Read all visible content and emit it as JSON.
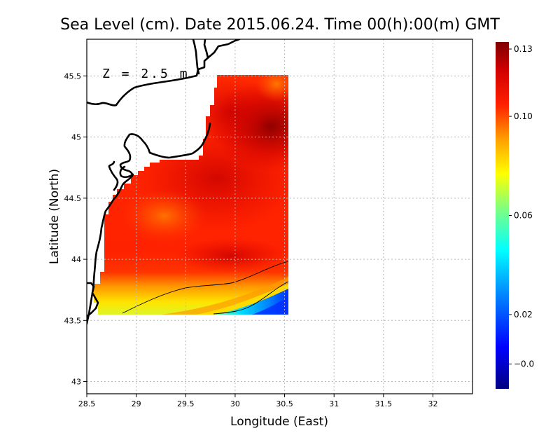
{
  "title": "Sea Level (cm). Date 2015.06.24. Time 00(h):00(m) GMT",
  "annotation": "Z = 2.5 m",
  "x_axis": {
    "label": "Longitude (East)",
    "ticks": [
      {
        "value": 28.5,
        "label": "28.5"
      },
      {
        "value": 29,
        "label": "29"
      },
      {
        "value": 29.5,
        "label": "29.5"
      },
      {
        "value": 30,
        "label": "30"
      },
      {
        "value": 30.5,
        "label": "30.5"
      },
      {
        "value": 31,
        "label": "31"
      },
      {
        "value": 31.5,
        "label": "31.5"
      },
      {
        "value": 32,
        "label": "32"
      }
    ],
    "range": [
      28.5,
      32.4
    ]
  },
  "y_axis": {
    "label": "Latitude (North)",
    "ticks": [
      {
        "value": 43,
        "label": "43"
      },
      {
        "value": 43.5,
        "label": "43.5"
      },
      {
        "value": 44,
        "label": "44"
      },
      {
        "value": 44.5,
        "label": "44.5"
      },
      {
        "value": 45,
        "label": "45"
      },
      {
        "value": 45.5,
        "label": "45.5"
      }
    ],
    "range": [
      42.9,
      45.8
    ]
  },
  "colorbar": {
    "ticks": [
      {
        "value": 0.13,
        "label": "0.13"
      },
      {
        "value": 0.1,
        "label": "0.10"
      },
      {
        "value": 0.06,
        "label": "0.06"
      },
      {
        "value": 0.02,
        "label": "0.02"
      },
      {
        "value": -0.0,
        "label": "−0.0"
      }
    ],
    "range": [
      -0.01,
      0.13
    ],
    "colormap": [
      "#00007f",
      "#0000ff",
      "#00a0ff",
      "#00ffff",
      "#7fff7f",
      "#ffff00",
      "#ff9f00",
      "#ff2000",
      "#d00000",
      "#7f0000"
    ]
  },
  "grid": true,
  "colors": {
    "land": "#ffffff",
    "coastline": "#000000",
    "grid": "#b8b8b8"
  }
}
